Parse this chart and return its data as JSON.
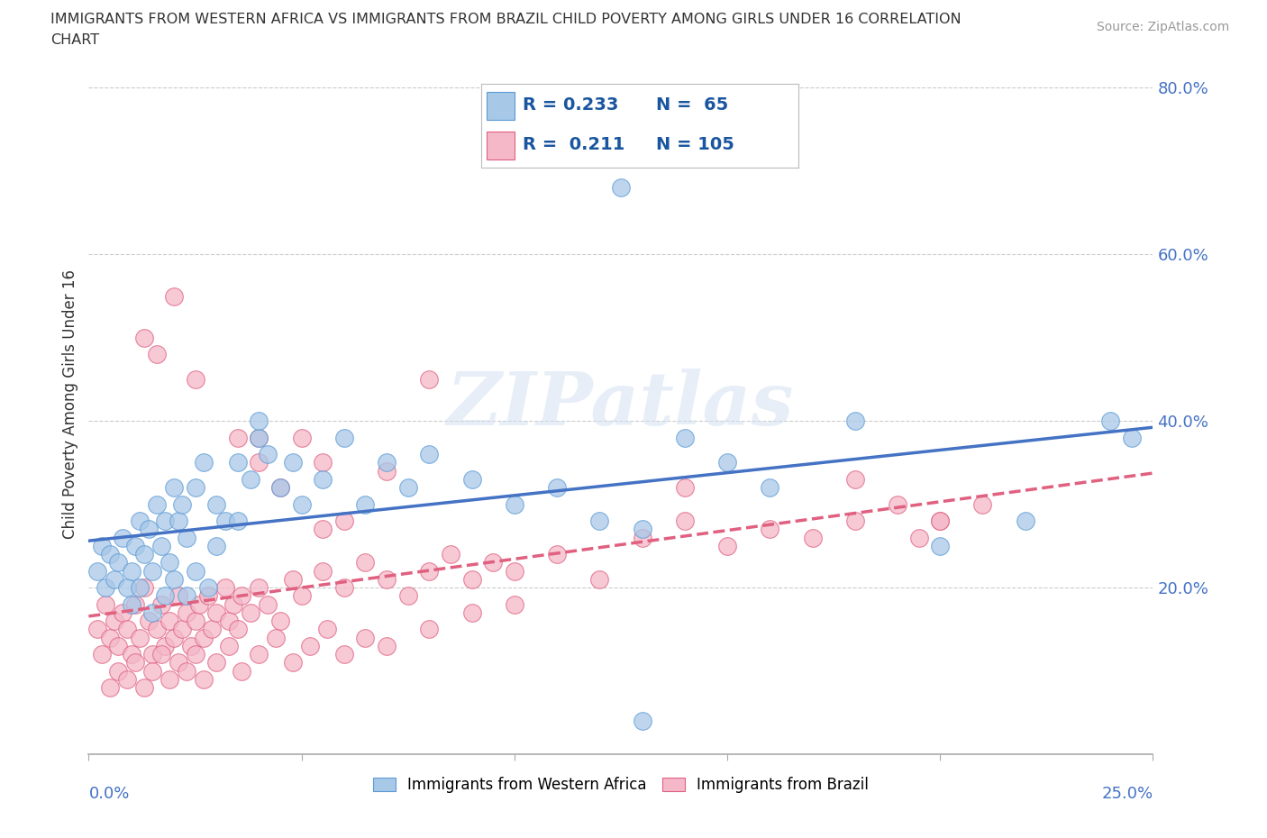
{
  "title_line1": "IMMIGRANTS FROM WESTERN AFRICA VS IMMIGRANTS FROM BRAZIL CHILD POVERTY AMONG GIRLS UNDER 16 CORRELATION",
  "title_line2": "CHART",
  "source": "Source: ZipAtlas.com",
  "ylabel": "Child Poverty Among Girls Under 16",
  "watermark": "ZIPatlas",
  "blue_color": "#a8c8e8",
  "blue_edge_color": "#5b9bd5",
  "blue_line_color": "#4472c4",
  "pink_color": "#f4b8c8",
  "pink_edge_color": "#e06080",
  "pink_line_color": "#e06080",
  "text_color": "#333333",
  "axis_label_color": "#4472c4",
  "legend_R_color": "#1a56a0",
  "legend_N_color": "#1a56a0",
  "grid_color": "#cccccc",
  "spine_color": "#aaaaaa",
  "R_blue": 0.233,
  "N_blue": 65,
  "R_pink": 0.211,
  "N_pink": 105,
  "x_min": 0.0,
  "x_max": 0.25,
  "y_min": 0.0,
  "y_max": 0.84,
  "yticks": [
    0.2,
    0.4,
    0.6,
    0.8
  ],
  "blue_points_x": [
    0.002,
    0.003,
    0.004,
    0.005,
    0.006,
    0.007,
    0.008,
    0.009,
    0.01,
    0.011,
    0.012,
    0.013,
    0.014,
    0.015,
    0.016,
    0.017,
    0.018,
    0.019,
    0.02,
    0.021,
    0.022,
    0.023,
    0.025,
    0.027,
    0.03,
    0.032,
    0.035,
    0.038,
    0.04,
    0.042,
    0.045,
    0.048,
    0.05,
    0.055,
    0.06,
    0.065,
    0.07,
    0.075,
    0.08,
    0.09,
    0.1,
    0.11,
    0.12,
    0.13,
    0.14,
    0.15,
    0.16,
    0.18,
    0.2,
    0.22,
    0.24,
    0.245,
    0.01,
    0.012,
    0.015,
    0.018,
    0.02,
    0.023,
    0.025,
    0.028,
    0.03,
    0.035,
    0.04,
    0.125,
    0.13
  ],
  "blue_points_y": [
    0.22,
    0.25,
    0.2,
    0.24,
    0.21,
    0.23,
    0.26,
    0.2,
    0.22,
    0.25,
    0.28,
    0.24,
    0.27,
    0.22,
    0.3,
    0.25,
    0.28,
    0.23,
    0.32,
    0.28,
    0.3,
    0.26,
    0.32,
    0.35,
    0.3,
    0.28,
    0.35,
    0.33,
    0.38,
    0.36,
    0.32,
    0.35,
    0.3,
    0.33,
    0.38,
    0.3,
    0.35,
    0.32,
    0.36,
    0.33,
    0.3,
    0.32,
    0.28,
    0.27,
    0.38,
    0.35,
    0.32,
    0.4,
    0.25,
    0.28,
    0.4,
    0.38,
    0.18,
    0.2,
    0.17,
    0.19,
    0.21,
    0.19,
    0.22,
    0.2,
    0.25,
    0.28,
    0.4,
    0.68,
    0.04
  ],
  "pink_points_x": [
    0.002,
    0.003,
    0.004,
    0.005,
    0.006,
    0.007,
    0.008,
    0.009,
    0.01,
    0.011,
    0.012,
    0.013,
    0.014,
    0.015,
    0.016,
    0.017,
    0.018,
    0.019,
    0.02,
    0.021,
    0.022,
    0.023,
    0.024,
    0.025,
    0.026,
    0.027,
    0.028,
    0.029,
    0.03,
    0.032,
    0.033,
    0.034,
    0.035,
    0.036,
    0.038,
    0.04,
    0.042,
    0.045,
    0.048,
    0.05,
    0.055,
    0.06,
    0.065,
    0.07,
    0.075,
    0.08,
    0.085,
    0.09,
    0.095,
    0.1,
    0.11,
    0.12,
    0.13,
    0.14,
    0.15,
    0.16,
    0.17,
    0.18,
    0.19,
    0.2,
    0.005,
    0.007,
    0.009,
    0.011,
    0.013,
    0.015,
    0.017,
    0.019,
    0.021,
    0.023,
    0.025,
    0.027,
    0.03,
    0.033,
    0.036,
    0.04,
    0.044,
    0.048,
    0.052,
    0.056,
    0.06,
    0.065,
    0.07,
    0.08,
    0.09,
    0.1,
    0.035,
    0.04,
    0.045,
    0.05,
    0.055,
    0.06,
    0.07,
    0.08,
    0.14,
    0.18,
    0.195,
    0.2,
    0.21,
    0.013,
    0.016,
    0.02,
    0.025,
    0.04,
    0.055
  ],
  "pink_points_y": [
    0.15,
    0.12,
    0.18,
    0.14,
    0.16,
    0.13,
    0.17,
    0.15,
    0.12,
    0.18,
    0.14,
    0.2,
    0.16,
    0.12,
    0.15,
    0.18,
    0.13,
    0.16,
    0.14,
    0.19,
    0.15,
    0.17,
    0.13,
    0.16,
    0.18,
    0.14,
    0.19,
    0.15,
    0.17,
    0.2,
    0.16,
    0.18,
    0.15,
    0.19,
    0.17,
    0.2,
    0.18,
    0.16,
    0.21,
    0.19,
    0.22,
    0.2,
    0.23,
    0.21,
    0.19,
    0.22,
    0.24,
    0.21,
    0.23,
    0.22,
    0.24,
    0.21,
    0.26,
    0.28,
    0.25,
    0.27,
    0.26,
    0.28,
    0.3,
    0.28,
    0.08,
    0.1,
    0.09,
    0.11,
    0.08,
    0.1,
    0.12,
    0.09,
    0.11,
    0.1,
    0.12,
    0.09,
    0.11,
    0.13,
    0.1,
    0.12,
    0.14,
    0.11,
    0.13,
    0.15,
    0.12,
    0.14,
    0.13,
    0.15,
    0.17,
    0.18,
    0.38,
    0.35,
    0.32,
    0.38,
    0.35,
    0.28,
    0.34,
    0.45,
    0.32,
    0.33,
    0.26,
    0.28,
    0.3,
    0.5,
    0.48,
    0.55,
    0.45,
    0.38,
    0.27
  ]
}
